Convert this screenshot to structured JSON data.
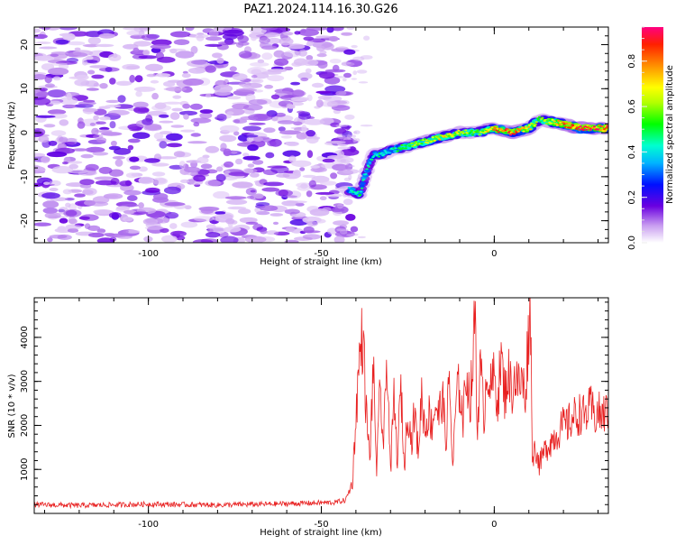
{
  "title": "PAZ1.2024.114.16.30.G26",
  "colors": {
    "snr_line": "#e82020",
    "noise_purple": "#8a2be2",
    "axis": "#000000"
  },
  "chart_data": [
    {
      "type": "heatmap",
      "xlabel": "Height of straight line (km)",
      "ylabel": "Frequency (Hz)",
      "xlim": [
        -133,
        33
      ],
      "ylim": [
        -25,
        24
      ],
      "xticks": [
        -100,
        -50,
        0
      ],
      "yticks": [
        -20,
        -10,
        0,
        10,
        20
      ],
      "grid": false,
      "colorbar": {
        "label": "Normalized spectral amplitude",
        "range": [
          0,
          0.95
        ],
        "ticks": [
          "0.0",
          "0.2",
          "0.4",
          "0.6",
          "0.8"
        ]
      },
      "ridge": {
        "x": [
          -42,
          -39,
          -37,
          -35,
          -33,
          -30,
          -25,
          -20,
          -15,
          -10,
          -5,
          0,
          5,
          10,
          13,
          20,
          25,
          33
        ],
        "y": [
          -13,
          -14,
          -9,
          -5,
          -5,
          -4,
          -3,
          -2,
          -1,
          0,
          0,
          1,
          0,
          1,
          3,
          2,
          1,
          1
        ],
        "amplitude": [
          0.45,
          0.55,
          0.5,
          0.45,
          0.5,
          0.45,
          0.6,
          0.65,
          0.75,
          0.7,
          0.6,
          0.85,
          0.9,
          0.75,
          0.6,
          0.85,
          0.95,
          0.95
        ]
      }
    },
    {
      "type": "line",
      "xlabel": "Height of straight line (km)",
      "ylabel": "SNR (10 * v/v)",
      "xlim": [
        -133,
        33
      ],
      "ylim": [
        0,
        4900
      ],
      "xticks": [
        -100,
        -50,
        0
      ],
      "yticks": [
        1000,
        2000,
        3000,
        4000
      ],
      "grid": false,
      "series": [
        {
          "x": [
            -133,
            -120,
            -100,
            -80,
            -60,
            -46,
            -43,
            -41,
            -40,
            -39,
            -38,
            -37,
            -36,
            -35,
            -34,
            -33,
            -32,
            -31,
            -30,
            -29,
            -28,
            -27,
            -26,
            -25,
            -24,
            -23,
            -22,
            -21,
            -20,
            -19,
            -18,
            -17,
            -16,
            -15,
            -14,
            -13,
            -12,
            -11,
            -10,
            -9,
            -8,
            -7,
            -6,
            -5.5,
            -5,
            -4,
            -3,
            -2,
            -1,
            0,
            1,
            2,
            3,
            4,
            5,
            6,
            7,
            8,
            9,
            10,
            10.5,
            11,
            12,
            13,
            14,
            15,
            16,
            17,
            18,
            19,
            20,
            21,
            22,
            23,
            24,
            25,
            26,
            27,
            28,
            29,
            30,
            31,
            32,
            33
          ],
          "y": [
            200,
            180,
            210,
            190,
            220,
            250,
            300,
            700,
            2200,
            3500,
            4100,
            2300,
            1200,
            3300,
            1000,
            2800,
            1500,
            3700,
            900,
            2600,
            1200,
            2900,
            1000,
            2500,
            1600,
            2300,
            1400,
            2700,
            1900,
            2300,
            2000,
            2500,
            2200,
            2700,
            1600,
            3100,
            1000,
            2600,
            2900,
            2100,
            3300,
            2500,
            3600,
            4900,
            1900,
            3300,
            2200,
            3400,
            2800,
            3100,
            2600,
            3500,
            2700,
            3200,
            2800,
            3100,
            2900,
            3000,
            2700,
            4300,
            4600,
            1300,
            1500,
            1100,
            1300,
            1500,
            1600,
            1700,
            1800,
            1900,
            2000,
            2000,
            2100,
            2200,
            2200,
            2300,
            2200,
            2300,
            2400,
            2200,
            2300,
            2200,
            2300,
            2250
          ]
        }
      ]
    }
  ]
}
